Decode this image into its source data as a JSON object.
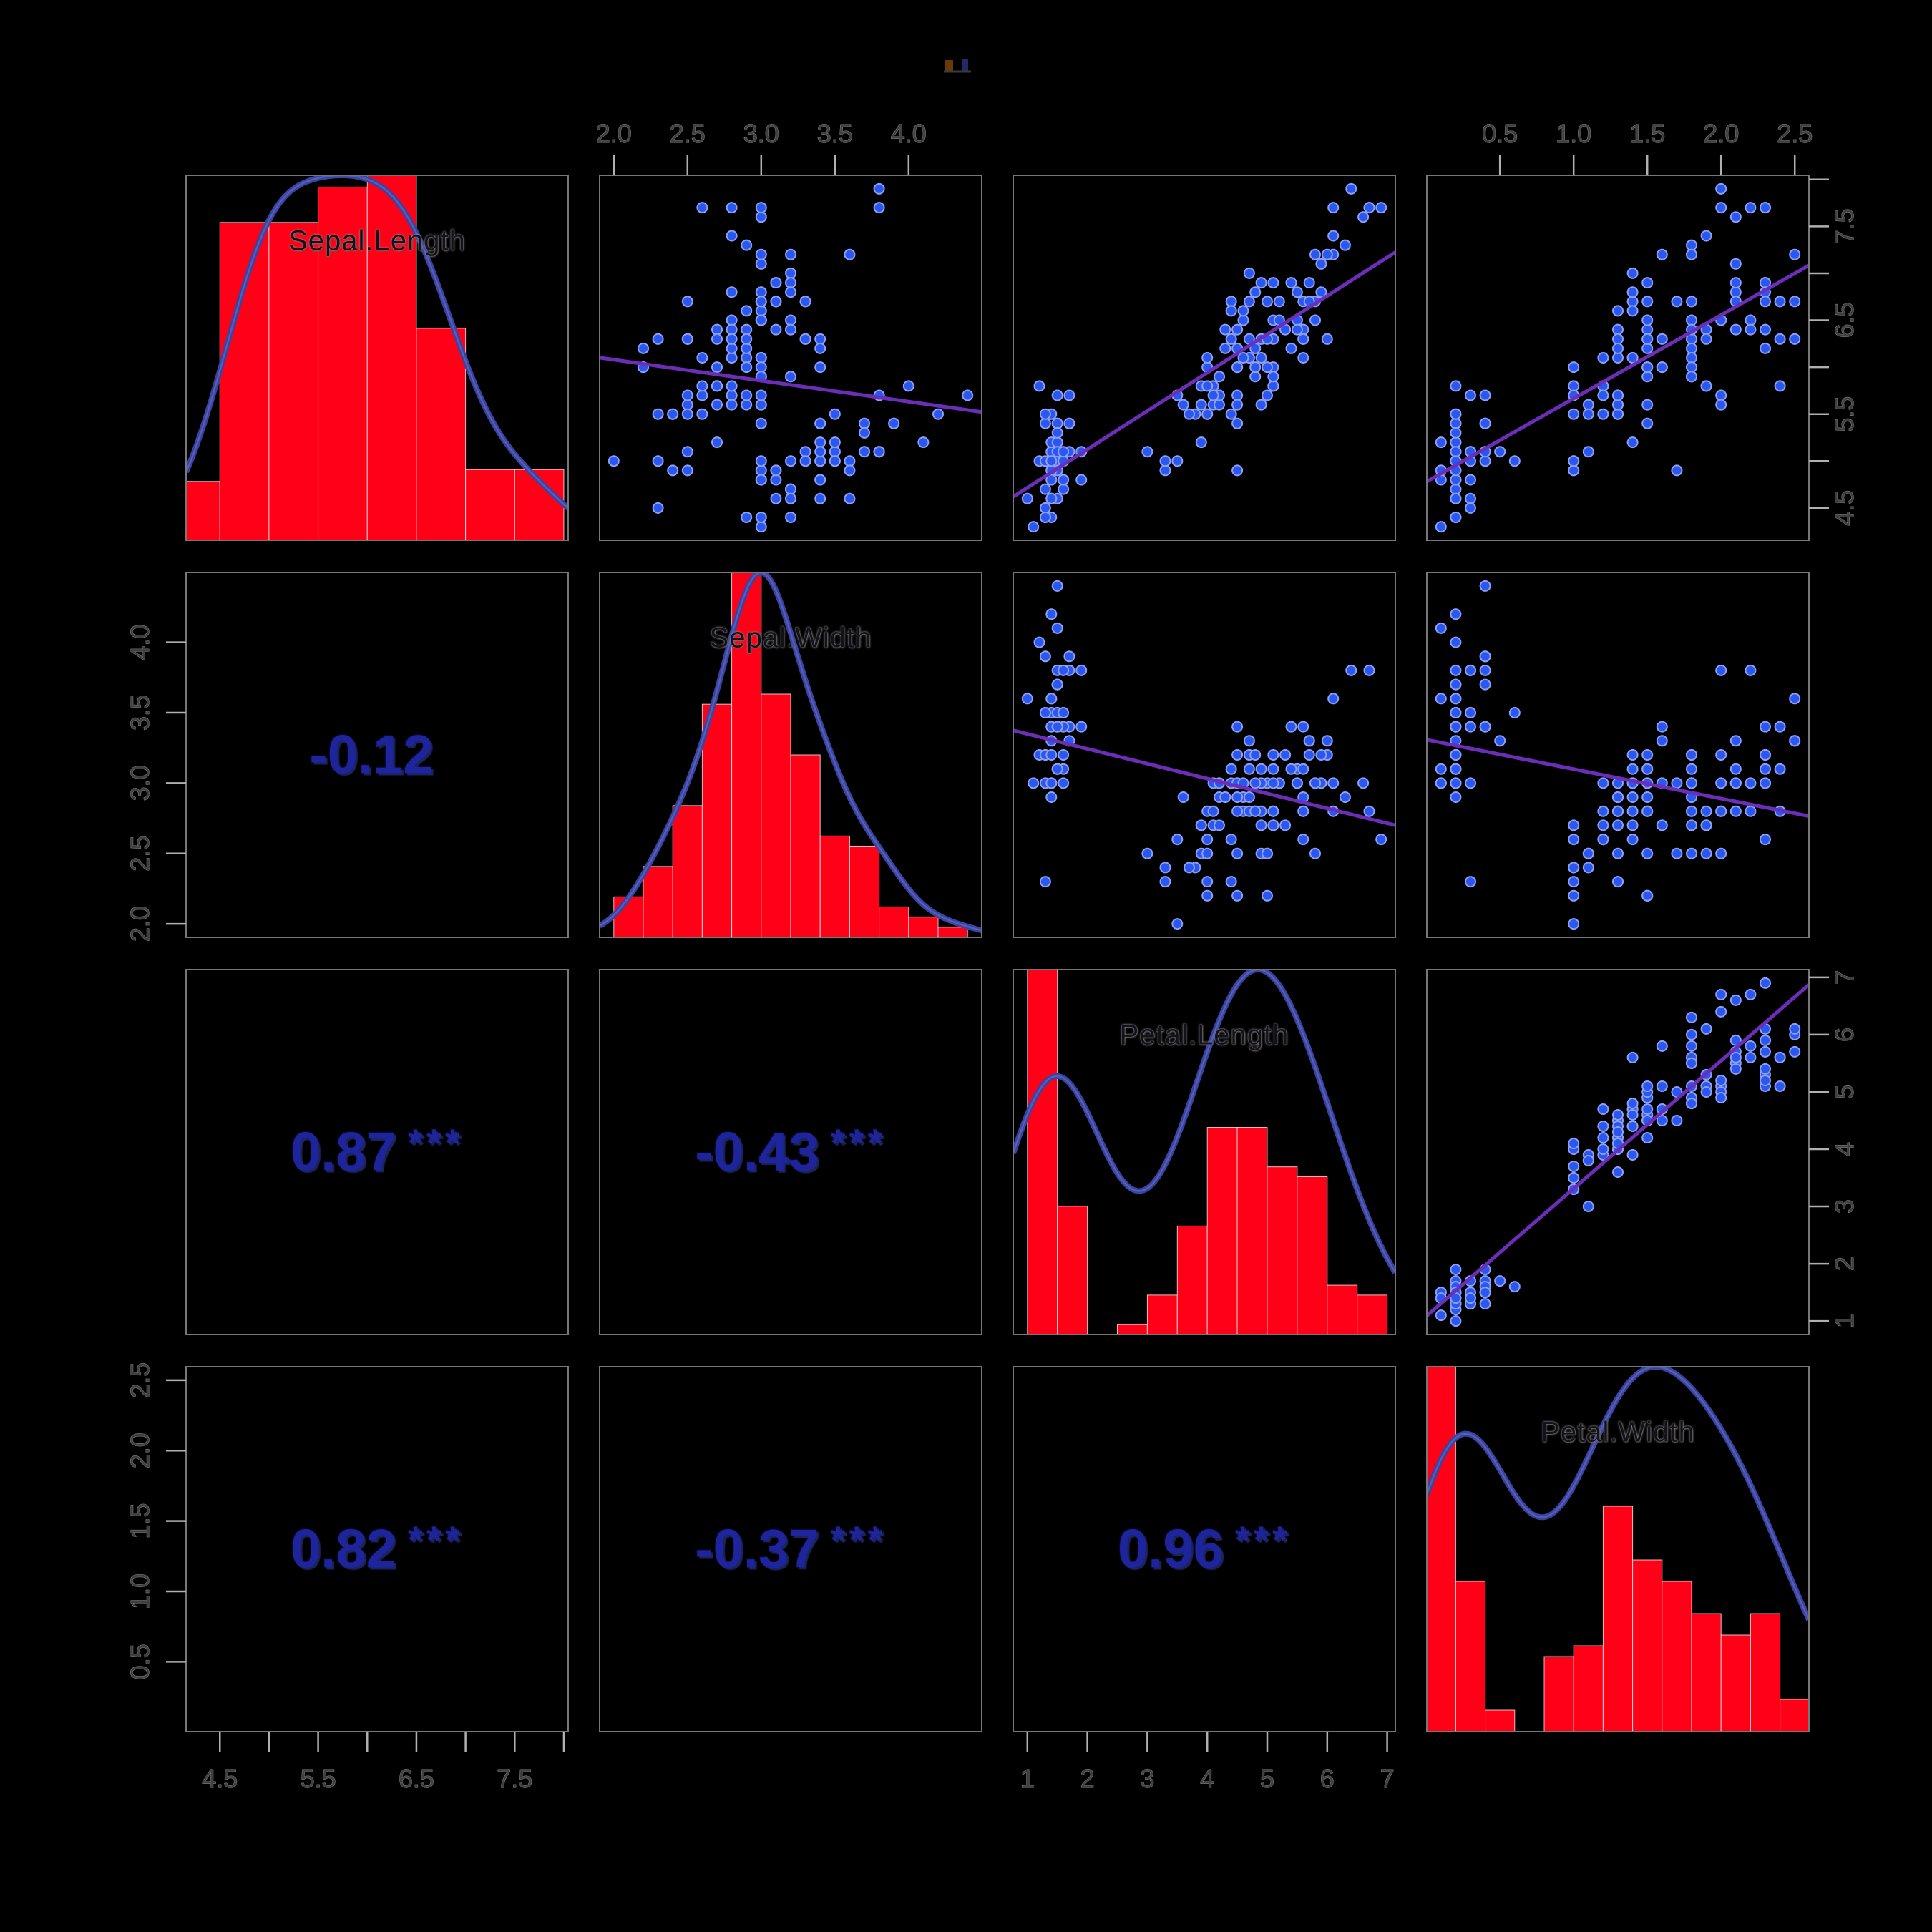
{
  "title_mark": {
    "text": "",
    "colors": [
      "#6a3a05",
      "#1f2a66",
      "#3a3a3a"
    ]
  },
  "colors": {
    "background": "#000000",
    "panel_border": "#777777",
    "histogram_fill": "#ff0016",
    "histogram_border": "#ffffff",
    "density_line": "#3a43a0",
    "density_highlight": "#5a64c0",
    "scatter_point_fill": "#2a57f0",
    "scatter_point_edge": "#8ea0f5",
    "regression_line": "#6c2eb8",
    "correlation_text": "#1d249c",
    "variable_label_text": "#12121f",
    "axis_text": "#3f3f3f",
    "axis_text_halo": "#8a8a8a",
    "tick_color": "#b0b0b0"
  },
  "chart_data": {
    "type": "scatter",
    "subtype": "pairs-correlation-matrix",
    "layout": {
      "grid": "4x4",
      "diagonal": "histogram + kernel density + variable name",
      "upper_triangle": "scatterplot with linear regression line",
      "lower_triangle": "correlation coefficient with significance stars",
      "axis_sides": "alternating: top on columns 2 and 4, bottom on columns 1 and 3, left on rows 2 and 4, right on rows 1 and 3"
    },
    "variables": [
      {
        "name": "Sepal.Length",
        "range": [
          4.3,
          7.9
        ],
        "hist_breaks": {
          "start": 4.0,
          "end": 8.0,
          "step": 0.5
        },
        "axis_ticks": [
          4.5,
          5.0,
          5.5,
          6.0,
          6.5,
          7.0,
          7.5,
          8.0
        ],
        "labeled_ticks": [
          "4.5",
          "5.5",
          "6.5",
          "7.5"
        ]
      },
      {
        "name": "Sepal.Width",
        "range": [
          2.0,
          4.4
        ],
        "hist_breaks": {
          "start": 2.0,
          "end": 4.4,
          "step": 0.2
        },
        "axis_ticks": [
          2.0,
          2.5,
          3.0,
          3.5,
          4.0
        ],
        "labeled_ticks": [
          "2.0",
          "2.5",
          "3.0",
          "3.5",
          "4.0"
        ]
      },
      {
        "name": "Petal.Length",
        "range": [
          1.0,
          6.9
        ],
        "hist_breaks": {
          "start": 1.0,
          "end": 7.0,
          "step": 0.5
        },
        "axis_ticks": [
          1,
          2,
          3,
          4,
          5,
          6,
          7
        ],
        "labeled_ticks": [
          "1",
          "2",
          "3",
          "4",
          "5",
          "6",
          "7"
        ]
      },
      {
        "name": "Petal.Width",
        "range": [
          0.1,
          2.5
        ],
        "hist_breaks": {
          "start": 0.0,
          "end": 2.6,
          "step": 0.2
        },
        "axis_ticks": [
          0.5,
          1.0,
          1.5,
          2.0,
          2.5
        ],
        "labeled_ticks": [
          "0.5",
          "1.0",
          "1.5",
          "2.0",
          "2.5"
        ]
      }
    ],
    "correlations": [
      {
        "row": 2,
        "col": 1,
        "pair": "Sepal.Width vs Sepal.Length",
        "value": "-0.12",
        "stars": ""
      },
      {
        "row": 3,
        "col": 1,
        "pair": "Petal.Length vs Sepal.Length",
        "value": "0.87",
        "stars": "***"
      },
      {
        "row": 3,
        "col": 2,
        "pair": "Petal.Length vs Sepal.Width",
        "value": "-0.43",
        "stars": "***"
      },
      {
        "row": 4,
        "col": 1,
        "pair": "Petal.Width vs Sepal.Length",
        "value": "0.82",
        "stars": "***"
      },
      {
        "row": 4,
        "col": 2,
        "pair": "Petal.Width vs Sepal.Width",
        "value": "-0.37",
        "stars": "***"
      },
      {
        "row": 4,
        "col": 3,
        "pair": "Petal.Width vs Petal.Length",
        "value": "0.96",
        "stars": "***"
      }
    ],
    "observations": [
      [
        5.1,
        3.5,
        1.4,
        0.2
      ],
      [
        4.9,
        3.0,
        1.4,
        0.2
      ],
      [
        4.7,
        3.2,
        1.3,
        0.2
      ],
      [
        4.6,
        3.1,
        1.5,
        0.2
      ],
      [
        5.0,
        3.6,
        1.4,
        0.2
      ],
      [
        5.4,
        3.9,
        1.7,
        0.4
      ],
      [
        4.6,
        3.4,
        1.4,
        0.3
      ],
      [
        5.0,
        3.4,
        1.5,
        0.2
      ],
      [
        4.4,
        2.9,
        1.4,
        0.2
      ],
      [
        4.9,
        3.1,
        1.5,
        0.1
      ],
      [
        5.4,
        3.7,
        1.5,
        0.2
      ],
      [
        4.8,
        3.4,
        1.6,
        0.2
      ],
      [
        4.8,
        3.0,
        1.4,
        0.1
      ],
      [
        4.3,
        3.0,
        1.1,
        0.1
      ],
      [
        5.8,
        4.0,
        1.2,
        0.2
      ],
      [
        5.7,
        4.4,
        1.5,
        0.4
      ],
      [
        5.4,
        3.9,
        1.3,
        0.4
      ],
      [
        5.1,
        3.5,
        1.4,
        0.3
      ],
      [
        5.7,
        3.8,
        1.7,
        0.3
      ],
      [
        5.1,
        3.8,
        1.5,
        0.3
      ],
      [
        5.4,
        3.4,
        1.7,
        0.2
      ],
      [
        5.1,
        3.7,
        1.5,
        0.4
      ],
      [
        4.6,
        3.6,
        1.0,
        0.2
      ],
      [
        5.1,
        3.3,
        1.7,
        0.5
      ],
      [
        4.8,
        3.4,
        1.9,
        0.2
      ],
      [
        5.0,
        3.0,
        1.6,
        0.2
      ],
      [
        5.0,
        3.4,
        1.6,
        0.4
      ],
      [
        5.2,
        3.5,
        1.5,
        0.2
      ],
      [
        5.2,
        3.4,
        1.4,
        0.2
      ],
      [
        4.7,
        3.2,
        1.6,
        0.2
      ],
      [
        4.8,
        3.1,
        1.6,
        0.2
      ],
      [
        5.4,
        3.4,
        1.5,
        0.4
      ],
      [
        5.2,
        4.1,
        1.5,
        0.1
      ],
      [
        5.5,
        4.2,
        1.4,
        0.2
      ],
      [
        4.9,
        3.1,
        1.5,
        0.2
      ],
      [
        5.0,
        3.2,
        1.2,
        0.2
      ],
      [
        5.5,
        3.5,
        1.3,
        0.2
      ],
      [
        4.9,
        3.6,
        1.4,
        0.1
      ],
      [
        4.4,
        3.0,
        1.3,
        0.2
      ],
      [
        5.1,
        3.4,
        1.5,
        0.2
      ],
      [
        5.0,
        3.5,
        1.3,
        0.3
      ],
      [
        4.5,
        2.3,
        1.3,
        0.3
      ],
      [
        4.4,
        3.2,
        1.3,
        0.2
      ],
      [
        5.0,
        3.5,
        1.6,
        0.6
      ],
      [
        5.1,
        3.8,
        1.9,
        0.4
      ],
      [
        4.8,
        3.0,
        1.4,
        0.3
      ],
      [
        5.1,
        3.8,
        1.6,
        0.2
      ],
      [
        4.6,
        3.2,
        1.4,
        0.2
      ],
      [
        5.3,
        3.7,
        1.5,
        0.2
      ],
      [
        5.0,
        3.3,
        1.4,
        0.2
      ],
      [
        7.0,
        3.2,
        4.7,
        1.4
      ],
      [
        6.4,
        3.2,
        4.5,
        1.5
      ],
      [
        6.9,
        3.1,
        4.9,
        1.5
      ],
      [
        5.5,
        2.3,
        4.0,
        1.3
      ],
      [
        6.5,
        2.8,
        4.6,
        1.5
      ],
      [
        5.7,
        2.8,
        4.5,
        1.3
      ],
      [
        6.3,
        3.3,
        4.7,
        1.6
      ],
      [
        4.9,
        2.4,
        3.3,
        1.0
      ],
      [
        6.6,
        2.9,
        4.6,
        1.3
      ],
      [
        5.2,
        2.7,
        3.9,
        1.4
      ],
      [
        5.0,
        2.0,
        3.5,
        1.0
      ],
      [
        5.9,
        3.0,
        4.2,
        1.5
      ],
      [
        6.0,
        2.2,
        4.0,
        1.0
      ],
      [
        6.1,
        2.9,
        4.7,
        1.4
      ],
      [
        5.6,
        2.9,
        3.6,
        1.3
      ],
      [
        6.7,
        3.1,
        4.4,
        1.4
      ],
      [
        5.6,
        3.0,
        4.5,
        1.5
      ],
      [
        5.8,
        2.7,
        4.1,
        1.0
      ],
      [
        6.2,
        2.2,
        4.5,
        1.5
      ],
      [
        5.6,
        2.5,
        3.9,
        1.1
      ],
      [
        5.9,
        3.2,
        4.8,
        1.8
      ],
      [
        6.1,
        2.8,
        4.0,
        1.3
      ],
      [
        6.3,
        2.5,
        4.9,
        1.5
      ],
      [
        6.1,
        2.8,
        4.7,
        1.2
      ],
      [
        6.4,
        2.9,
        4.3,
        1.3
      ],
      [
        6.6,
        3.0,
        4.4,
        1.4
      ],
      [
        6.8,
        2.8,
        4.8,
        1.4
      ],
      [
        6.7,
        3.0,
        5.0,
        1.7
      ],
      [
        6.0,
        2.9,
        4.5,
        1.5
      ],
      [
        5.7,
        2.6,
        3.5,
        1.0
      ],
      [
        5.5,
        2.4,
        3.8,
        1.1
      ],
      [
        5.5,
        2.4,
        3.7,
        1.0
      ],
      [
        5.8,
        2.7,
        3.9,
        1.2
      ],
      [
        6.0,
        2.7,
        5.1,
        1.6
      ],
      [
        5.4,
        3.0,
        4.5,
        1.5
      ],
      [
        6.0,
        3.4,
        4.5,
        1.6
      ],
      [
        6.7,
        3.1,
        4.7,
        1.5
      ],
      [
        6.3,
        2.3,
        4.4,
        1.3
      ],
      [
        5.6,
        3.0,
        4.1,
        1.3
      ],
      [
        5.5,
        2.5,
        4.0,
        1.3
      ],
      [
        5.5,
        2.6,
        4.4,
        1.2
      ],
      [
        6.1,
        3.0,
        4.6,
        1.4
      ],
      [
        5.8,
        2.6,
        4.0,
        1.2
      ],
      [
        5.0,
        2.3,
        3.3,
        1.0
      ],
      [
        5.6,
        2.7,
        4.2,
        1.3
      ],
      [
        5.7,
        3.0,
        4.2,
        1.2
      ],
      [
        5.7,
        2.9,
        4.2,
        1.3
      ],
      [
        6.2,
        2.9,
        4.3,
        1.3
      ],
      [
        5.1,
        2.5,
        3.0,
        1.1
      ],
      [
        5.7,
        2.8,
        4.1,
        1.3
      ],
      [
        6.3,
        3.3,
        6.0,
        2.5
      ],
      [
        5.8,
        2.7,
        5.1,
        1.9
      ],
      [
        7.1,
        3.0,
        5.9,
        2.1
      ],
      [
        6.3,
        2.9,
        5.6,
        1.8
      ],
      [
        6.5,
        3.0,
        5.8,
        2.2
      ],
      [
        7.6,
        3.0,
        6.6,
        2.1
      ],
      [
        4.9,
        2.5,
        4.5,
        1.7
      ],
      [
        7.3,
        2.9,
        6.3,
        1.8
      ],
      [
        6.7,
        2.5,
        5.8,
        1.8
      ],
      [
        7.2,
        3.6,
        6.1,
        2.5
      ],
      [
        6.5,
        3.2,
        5.1,
        2.0
      ],
      [
        6.4,
        2.7,
        5.3,
        1.9
      ],
      [
        6.8,
        3.0,
        5.5,
        2.1
      ],
      [
        5.7,
        2.5,
        5.0,
        2.0
      ],
      [
        5.8,
        2.8,
        5.1,
        2.4
      ],
      [
        6.4,
        3.2,
        5.3,
        2.3
      ],
      [
        6.5,
        3.0,
        5.5,
        1.8
      ],
      [
        7.7,
        3.8,
        6.7,
        2.2
      ],
      [
        7.7,
        2.6,
        6.9,
        2.3
      ],
      [
        6.0,
        2.2,
        5.0,
        1.5
      ],
      [
        6.9,
        3.2,
        5.7,
        2.3
      ],
      [
        5.6,
        2.8,
        4.9,
        2.0
      ],
      [
        7.7,
        2.8,
        6.7,
        2.0
      ],
      [
        6.3,
        2.7,
        4.9,
        1.8
      ],
      [
        6.7,
        3.3,
        5.7,
        2.1
      ],
      [
        7.2,
        3.2,
        6.0,
        1.8
      ],
      [
        6.2,
        2.8,
        4.8,
        1.8
      ],
      [
        6.1,
        3.0,
        4.9,
        1.8
      ],
      [
        6.4,
        2.8,
        5.6,
        2.1
      ],
      [
        7.2,
        3.0,
        5.8,
        1.6
      ],
      [
        7.4,
        2.8,
        6.1,
        1.9
      ],
      [
        7.9,
        3.8,
        6.4,
        2.0
      ],
      [
        6.4,
        2.8,
        5.6,
        2.2
      ],
      [
        6.3,
        2.8,
        5.1,
        1.5
      ],
      [
        6.1,
        2.6,
        5.6,
        1.4
      ],
      [
        7.7,
        3.0,
        6.1,
        2.3
      ],
      [
        6.3,
        3.4,
        5.6,
        2.4
      ],
      [
        6.4,
        3.1,
        5.5,
        1.8
      ],
      [
        6.0,
        3.0,
        4.8,
        1.8
      ],
      [
        6.9,
        3.1,
        5.4,
        2.1
      ],
      [
        6.7,
        3.1,
        5.6,
        2.4
      ],
      [
        6.9,
        3.1,
        5.1,
        2.3
      ],
      [
        5.8,
        2.7,
        5.1,
        1.9
      ],
      [
        6.8,
        3.2,
        5.9,
        2.3
      ],
      [
        6.7,
        3.3,
        5.7,
        2.5
      ],
      [
        6.7,
        3.0,
        5.2,
        2.3
      ],
      [
        6.3,
        2.5,
        5.0,
        1.9
      ],
      [
        6.5,
        3.0,
        5.2,
        2.0
      ],
      [
        6.2,
        3.4,
        5.4,
        2.3
      ],
      [
        5.9,
        3.0,
        5.1,
        1.8
      ]
    ]
  }
}
